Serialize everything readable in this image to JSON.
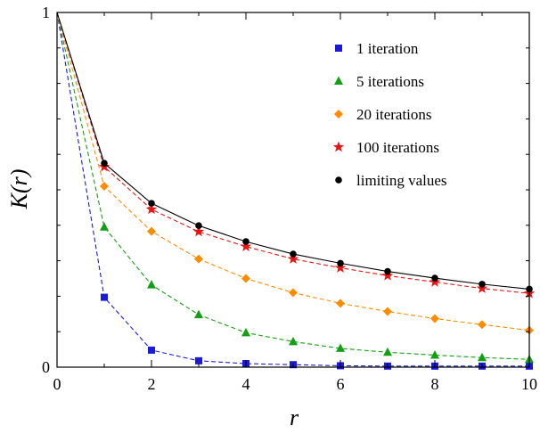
{
  "chart_data": {
    "type": "line",
    "title": "",
    "xlabel": "r",
    "ylabel": "K(r)",
    "xlim": [
      0,
      10
    ],
    "ylim": [
      0,
      1
    ],
    "x_ticks": [
      0,
      2,
      4,
      6,
      8,
      10
    ],
    "y_ticks": [
      0,
      1
    ],
    "grid": false,
    "legend_position": "top-right",
    "x": [
      0,
      1,
      2,
      3,
      4,
      5,
      6,
      7,
      8,
      9,
      10
    ],
    "series": [
      {
        "name": "1 iteration",
        "marker": "square",
        "color": "#1a1adb",
        "line_style": "dashed",
        "values": [
          1.0,
          0.197,
          0.048,
          0.018,
          0.01,
          0.007,
          0.004,
          0.003,
          0.003,
          0.003,
          0.003
        ]
      },
      {
        "name": "5 iterations",
        "marker": "triangle",
        "color": "#14a014",
        "line_style": "dashed",
        "values": [
          1.0,
          0.395,
          0.232,
          0.148,
          0.097,
          0.072,
          0.053,
          0.042,
          0.034,
          0.027,
          0.022
        ]
      },
      {
        "name": "20 iterations",
        "marker": "diamond",
        "color": "#ff8c00",
        "line_style": "dashed",
        "values": [
          1.0,
          0.51,
          0.383,
          0.305,
          0.25,
          0.21,
          0.18,
          0.157,
          0.137,
          0.12,
          0.104
        ]
      },
      {
        "name": "100 iterations",
        "marker": "star",
        "color": "#e81414",
        "line_style": "dashed",
        "values": [
          1.0,
          0.565,
          0.445,
          0.382,
          0.34,
          0.305,
          0.28,
          0.258,
          0.24,
          0.222,
          0.208
        ]
      },
      {
        "name": "limiting values",
        "marker": "circle",
        "color": "#000000",
        "line_style": "solid",
        "values": [
          1.0,
          0.575,
          0.462,
          0.399,
          0.354,
          0.319,
          0.293,
          0.27,
          0.251,
          0.234,
          0.22
        ]
      }
    ]
  }
}
